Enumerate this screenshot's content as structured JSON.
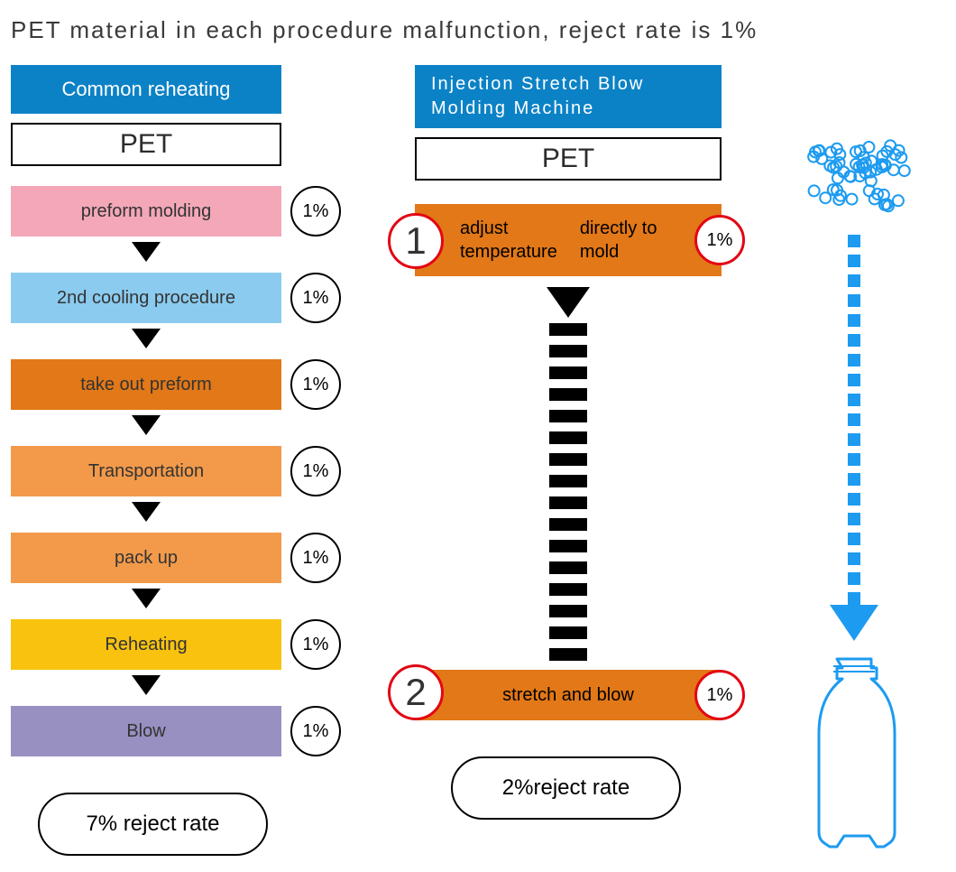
{
  "title": "PET material in each procedure malfunction, reject rate is 1%",
  "colors": {
    "header_blue": "#0c82c6",
    "pink": "#f3a7b7",
    "light_blue": "#8bcbef",
    "orange_dark": "#e27817",
    "orange_mid": "#f29a4a",
    "yellow": "#f8c20f",
    "purple": "#9790c1",
    "red_ring": "#e30613",
    "illus_blue": "#1d9bf0",
    "text_dark": "#333333"
  },
  "left": {
    "header": "Common reheating",
    "pet_label": "PET",
    "steps": [
      {
        "label": "preform molding",
        "pct": "1%",
        "color": "#f3a7b7"
      },
      {
        "label": "2nd cooling procedure",
        "pct": "1%",
        "color": "#8bcbef"
      },
      {
        "label": "take out preform",
        "pct": "1%",
        "color": "#e27817"
      },
      {
        "label": "Transportation",
        "pct": "1%",
        "color": "#f29a4a"
      },
      {
        "label": "pack up",
        "pct": "1%",
        "color": "#f29a4a"
      },
      {
        "label": "Reheating",
        "pct": "1%",
        "color": "#f8c20f"
      },
      {
        "label": "Blow",
        "pct": "1%",
        "color": "#9790c1"
      }
    ],
    "result": "7% reject rate"
  },
  "right": {
    "header": "Injection Stretch Blow\nMolding Machine",
    "pet_label": "PET",
    "steps": [
      {
        "num": "1",
        "label": "adjust temperature\ndirectly to mold",
        "pct": "1%",
        "color": "#e27817"
      },
      {
        "num": "2",
        "label": "stretch and blow",
        "pct": "1%",
        "color": "#e27817"
      }
    ],
    "dash_count": 16,
    "result": "2%reject rate"
  },
  "illustration": {
    "pellet_color": "#1d9bf0",
    "arrow_color": "#1d9bf0",
    "bottle_stroke": "#1d9bf0"
  }
}
